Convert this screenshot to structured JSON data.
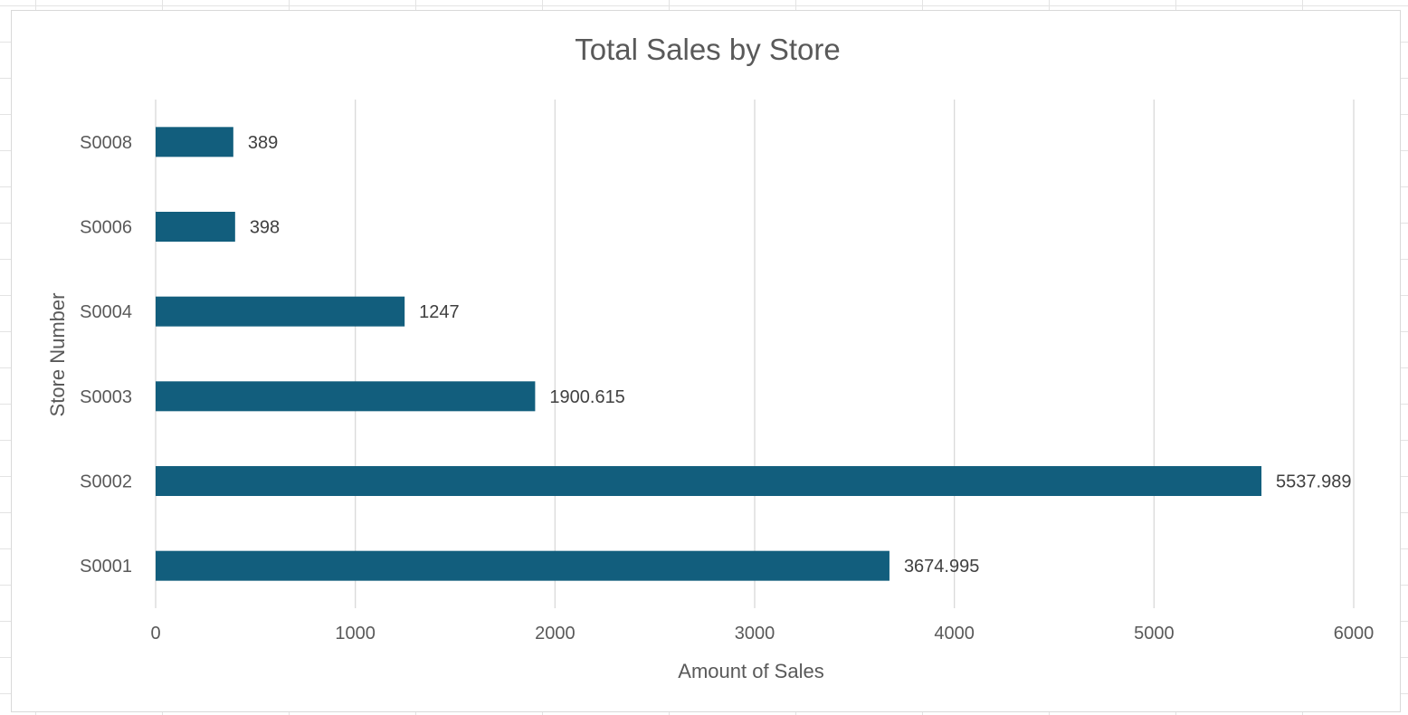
{
  "chart_data": {
    "type": "bar",
    "orientation": "horizontal",
    "title": "Total Sales by Store",
    "xlabel": "Amount of Sales",
    "ylabel": "Store Number",
    "categories": [
      "S0001",
      "S0002",
      "S0003",
      "S0004",
      "S0006",
      "S0008"
    ],
    "values": [
      3674.995,
      5537.989,
      1900.615,
      1247,
      398,
      389
    ],
    "data_labels": [
      "3674.995",
      "5537.989",
      "1900.615",
      "1247",
      "398",
      "389"
    ],
    "xlim": [
      0,
      6000
    ],
    "xticks": [
      0,
      1000,
      2000,
      3000,
      4000,
      5000,
      6000
    ],
    "xtick_labels": [
      "0",
      "1000",
      "2000",
      "3000",
      "4000",
      "5000",
      "6000"
    ],
    "grid": true,
    "legend": "none",
    "colors": {
      "bar": "#125e7d",
      "grid": "#d9d9d9",
      "text": "#595959"
    }
  }
}
